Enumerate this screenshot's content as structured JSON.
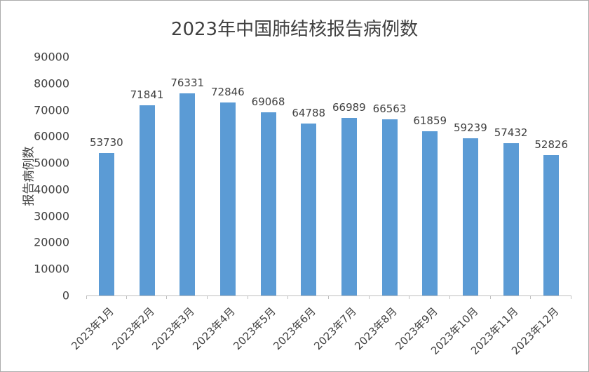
{
  "chart_data": {
    "type": "bar",
    "title": "2023年中国肺结核报告病例数",
    "ylabel": "报告病例数",
    "xlabel": "",
    "categories": [
      "2023年1月",
      "2023年2月",
      "2023年3月",
      "2023年4月",
      "2023年5月",
      "2023年6月",
      "2023年7月",
      "2023年8月",
      "2023年9月",
      "2023年10月",
      "2023年11月",
      "2023年12月"
    ],
    "values": [
      53730,
      71841,
      76331,
      72846,
      69068,
      64788,
      66989,
      66563,
      61859,
      59239,
      57432,
      52826
    ],
    "ylim": [
      0,
      90000
    ],
    "ytick_step": 10000,
    "grid": false,
    "legend": "none",
    "data_labels": true,
    "bar_color": "#5B9BD5",
    "axis_color": "#BFBFBF",
    "text_color": "#404040"
  }
}
